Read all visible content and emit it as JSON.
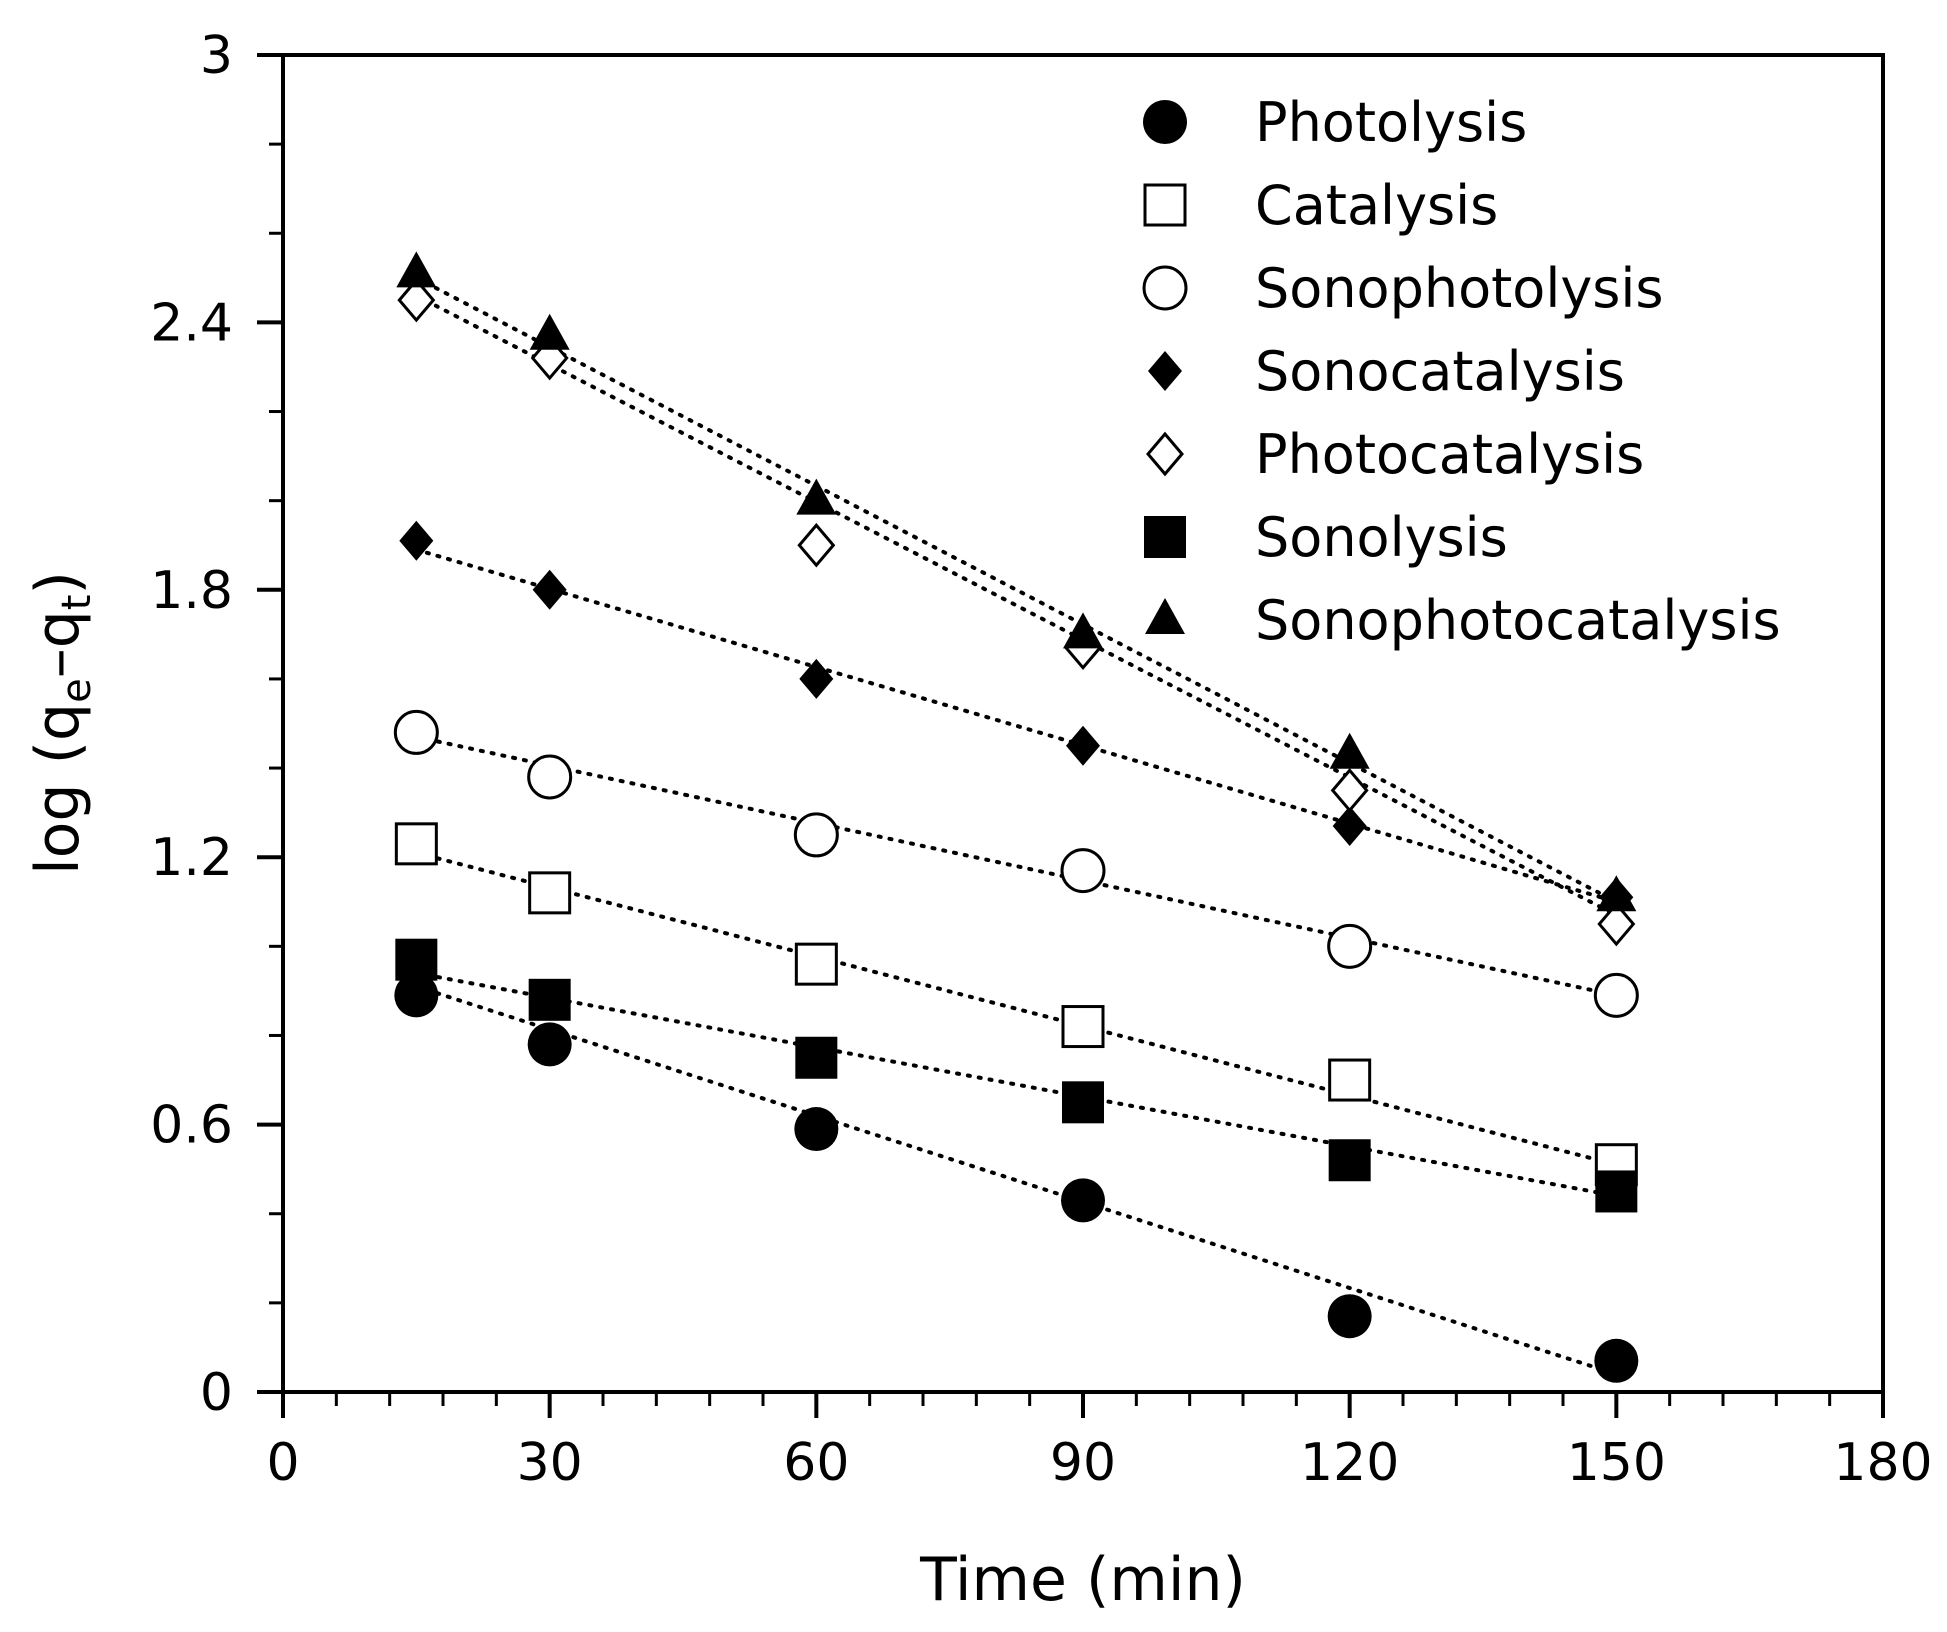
{
  "chart_data": {
    "type": "scatter",
    "title": "",
    "xlabel": "Time (min)",
    "ylabel_parts": [
      "log (q",
      "e",
      "–q",
      "t",
      ")"
    ],
    "xlim": [
      0,
      180
    ],
    "ylim": [
      0,
      3
    ],
    "xticks": [
      "0",
      "30",
      "60",
      "90",
      "120",
      "150",
      "180"
    ],
    "yticks": [
      "0",
      "0.6",
      "1.2",
      "1.8",
      "2.4",
      "3"
    ],
    "xtick_values": [
      0,
      30,
      60,
      90,
      120,
      150,
      180
    ],
    "ytick_values": [
      0,
      0.6,
      1.2,
      1.8,
      2.4,
      3
    ],
    "x_minor_step": 6,
    "y_minor_step": 0.2,
    "grid": false,
    "legend_position": "top-right",
    "x": [
      15,
      30,
      60,
      90,
      120,
      150
    ],
    "series": [
      {
        "name": "Photolysis",
        "marker": "filled-circle",
        "values": [
          0.89,
          0.78,
          0.59,
          0.43,
          0.17,
          0.07
        ],
        "trend": [
          0.91,
          0.04
        ]
      },
      {
        "name": "Catalysis",
        "marker": "open-square",
        "values": [
          1.23,
          1.12,
          0.96,
          0.82,
          0.7,
          0.51
        ],
        "trend": [
          1.21,
          0.51
        ]
      },
      {
        "name": "Sonophotolysis",
        "marker": "open-circle",
        "values": [
          1.48,
          1.38,
          1.25,
          1.17,
          1.0,
          0.89
        ],
        "trend": [
          1.47,
          0.89
        ]
      },
      {
        "name": "Sonocatalysis",
        "marker": "filled-diamond",
        "values": [
          1.91,
          1.8,
          1.6,
          1.45,
          1.27,
          1.11
        ],
        "trend": [
          1.89,
          1.1
        ]
      },
      {
        "name": "Photocatalysis",
        "marker": "open-diamond",
        "values": [
          2.45,
          2.32,
          1.9,
          1.67,
          1.35,
          1.05
        ],
        "trend": [
          2.46,
          1.07
        ]
      },
      {
        "name": "Sonolysis",
        "marker": "filled-square",
        "values": [
          0.97,
          0.88,
          0.75,
          0.65,
          0.52,
          0.45
        ],
        "trend": [
          0.94,
          0.44
        ]
      },
      {
        "name": "Sonophotocatalysis",
        "marker": "filled-triangle",
        "values": [
          2.51,
          2.37,
          2.0,
          1.7,
          1.43,
          1.11
        ],
        "trend": [
          2.5,
          1.1
        ]
      }
    ]
  }
}
